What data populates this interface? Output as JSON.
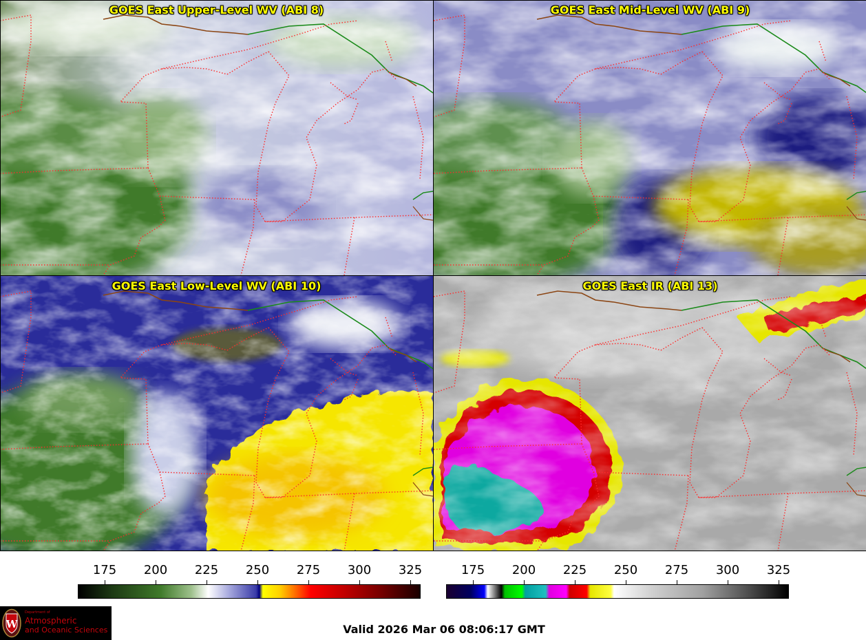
{
  "panels": [
    {
      "title": "GOES East Upper-Level WV (ABI 8)"
    },
    {
      "title": "GOES East Mid-Level WV (ABI 9)"
    },
    {
      "title": "GOES East Low-Level WV (ABI 10)"
    },
    {
      "title": "GOES East IR (ABI 13)"
    }
  ],
  "colorbars": [
    {
      "name": "wv-colorbar",
      "ticks": [
        "175",
        "200",
        "225",
        "250",
        "275",
        "300",
        "325"
      ]
    },
    {
      "name": "ir-colorbar",
      "ticks": [
        "175",
        "200",
        "225",
        "250",
        "275",
        "300",
        "325"
      ]
    }
  ],
  "logo": {
    "line1": "Department of",
    "line2": "Atmospheric",
    "line3": "and Oceanic Sciences",
    "seal_letter": "W"
  },
  "valid_time": "Valid 2026 Mar 06 08:06:17 GMT",
  "colors": {
    "state_borders": "#ff2a2a",
    "country_border": "#1a8a1a",
    "coastline": "#8b4513",
    "title_text": "#ffff00"
  }
}
